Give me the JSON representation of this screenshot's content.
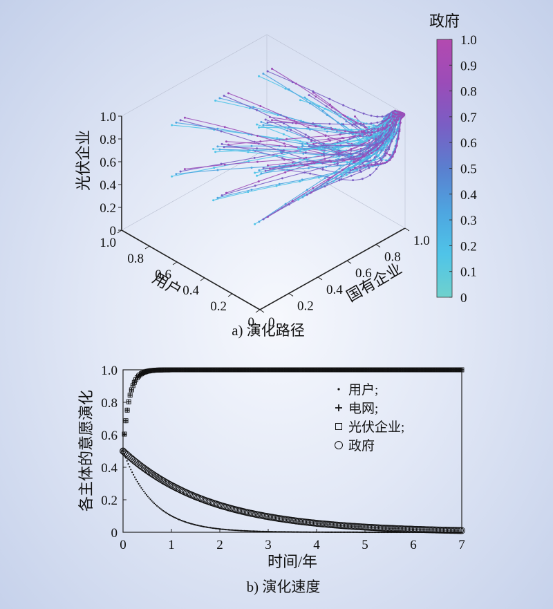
{
  "chart_data": [
    {
      "id": "a",
      "type": "scatter3d",
      "caption": "a) 演化路径",
      "axes": {
        "x": {
          "label": "国有企业",
          "ticks": [
            "0",
            "0.2",
            "0.4",
            "0.6",
            "0.8",
            "1.0"
          ],
          "range": [
            0,
            1
          ]
        },
        "y": {
          "label": "用户",
          "ticks": [
            "0",
            "0.2",
            "0.4",
            "0.6",
            "0.8",
            "1.0"
          ],
          "range": [
            0,
            1
          ]
        },
        "z": {
          "label": "光伏企业",
          "ticks": [
            "0",
            "0.2",
            "0.4",
            "0.6",
            "0.8",
            "1.0"
          ],
          "range": [
            0,
            1
          ]
        }
      },
      "colorbar": {
        "label": "政府",
        "ticks": [
          "0",
          "0.1",
          "0.2",
          "0.3",
          "0.4",
          "0.5",
          "0.6",
          "0.7",
          "0.8",
          "0.9",
          "1.0"
        ],
        "range": [
          0,
          1
        ],
        "colors": [
          "#6fd1cd",
          "#4fc4e8",
          "#4ea5e0",
          "#5a7fcf",
          "#7a5ec4",
          "#9b4cb8",
          "#b34ab0"
        ]
      },
      "grid": true,
      "anchor_points": [
        {
          "x": 0.2,
          "y": 0.2,
          "z": 0.95
        },
        {
          "x": 0.2,
          "y": 0.5,
          "z": 0.95
        },
        {
          "x": 0.2,
          "y": 0.8,
          "z": 0.95
        },
        {
          "x": 0.5,
          "y": 0.2,
          "z": 0.95
        },
        {
          "x": 0.5,
          "y": 0.5,
          "z": 0.95
        },
        {
          "x": 0.5,
          "y": 0.8,
          "z": 0.95
        },
        {
          "x": 0.8,
          "y": 0.2,
          "z": 0.95
        },
        {
          "x": 0.8,
          "y": 0.5,
          "z": 0.95
        },
        {
          "x": 0.8,
          "y": 0.8,
          "z": 0.95
        },
        {
          "x": 0.2,
          "y": 0.2,
          "z": 0.5
        },
        {
          "x": 0.2,
          "y": 0.5,
          "z": 0.5
        },
        {
          "x": 0.2,
          "y": 0.8,
          "z": 0.5
        },
        {
          "x": 0.5,
          "y": 0.2,
          "z": 0.5
        },
        {
          "x": 0.5,
          "y": 0.5,
          "z": 0.5
        },
        {
          "x": 0.5,
          "y": 0.8,
          "z": 0.5
        },
        {
          "x": 0.8,
          "y": 0.2,
          "z": 0.5
        },
        {
          "x": 0.8,
          "y": 0.5,
          "z": 0.5
        },
        {
          "x": 0.8,
          "y": 0.8,
          "z": 0.5
        }
      ],
      "converge_to": {
        "x": 1.0,
        "y": 0.0,
        "z": 1.0
      }
    },
    {
      "id": "b",
      "type": "scatter",
      "caption": "b) 演化速度",
      "xlabel": "时间/年",
      "ylabel": "各主体的意愿演化",
      "xlim": [
        0,
        7
      ],
      "ylim": [
        0,
        1
      ],
      "xticks": [
        "0",
        "1",
        "2",
        "3",
        "4",
        "5",
        "6",
        "7"
      ],
      "yticks": [
        "0",
        "0.2",
        "0.4",
        "0.6",
        "0.8",
        "1.0"
      ],
      "legend_position": "right",
      "series": [
        {
          "name": "用户;",
          "marker": "·",
          "initial": 0.5,
          "final": 0.0,
          "rate": 1.6
        },
        {
          "name": "电网;",
          "marker": "+",
          "initial": 0.5,
          "final": 1.0,
          "rate": 8.0
        },
        {
          "name": "光伏企业;",
          "marker": "□",
          "initial": 0.5,
          "final": 1.0,
          "rate": 8.0
        },
        {
          "name": "政府",
          "marker": "○",
          "initial": 0.5,
          "final": 0.0,
          "rate": 0.55
        }
      ]
    }
  ]
}
